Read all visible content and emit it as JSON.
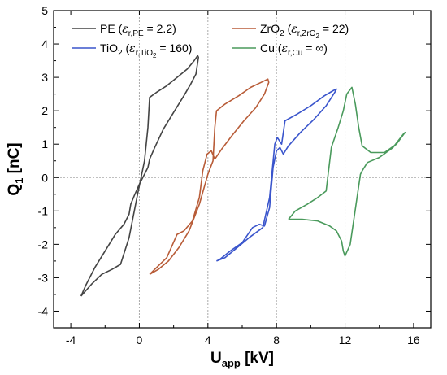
{
  "chart_data": {
    "type": "line",
    "xlabel": "U",
    "xlabel_sub": "app",
    "xlabel_unit": " [kV]",
    "ylabel": "Q",
    "ylabel_sub": "1",
    "ylabel_unit": " [nC]",
    "xlim": [
      -5,
      17
    ],
    "ylim": [
      -4.5,
      5
    ],
    "xticks": [
      -4,
      0,
      4,
      8,
      12,
      16
    ],
    "xtick_labels": [
      "-4",
      "0",
      "4",
      "8",
      "12",
      "16"
    ],
    "yticks": [
      -4,
      -3,
      -2,
      -1,
      0,
      1,
      2,
      3,
      4,
      5
    ],
    "ytick_labels": [
      "-4",
      "-3",
      "-2",
      "-1",
      "0",
      "1",
      "2",
      "3",
      "4",
      "5"
    ],
    "reference_lines": {
      "x": [
        0,
        4,
        8,
        12
      ],
      "y": [
        0
      ]
    },
    "legend_placement": "top",
    "series": [
      {
        "name": "PE",
        "eps_sub": "r,PE",
        "eps_value": "2.2",
        "color": "#444444",
        "x": [
          -3.4,
          -2.8,
          -2.2,
          -1.6,
          -1.1,
          -0.6,
          -0.1,
          0.3,
          0.5,
          0.6,
          1.0,
          1.6,
          2.2,
          2.8,
          3.2,
          3.4,
          3.45,
          3.3,
          3.0,
          2.6,
          2.0,
          1.4,
          0.9,
          0.6,
          0.5,
          0.3,
          0.0,
          -0.3,
          -0.5,
          -0.6,
          -0.9,
          -1.4,
          -2.0,
          -2.6,
          -3.1,
          -3.4
        ],
        "y": [
          -3.55,
          -3.2,
          -2.9,
          -2.75,
          -2.6,
          -1.8,
          -0.5,
          0.5,
          1.5,
          2.4,
          2.55,
          2.75,
          3.0,
          3.25,
          3.5,
          3.65,
          3.6,
          3.1,
          2.8,
          2.45,
          1.95,
          1.45,
          0.9,
          0.55,
          0.3,
          0.1,
          -0.2,
          -0.55,
          -0.8,
          -1.1,
          -1.4,
          -1.7,
          -2.2,
          -2.7,
          -3.2,
          -3.55
        ]
      },
      {
        "name": "ZrO",
        "name_sub": "2",
        "eps_sub": "r,ZrO",
        "eps_sub_sub": "2",
        "eps_value": "22",
        "color": "#b85c38",
        "x": [
          0.6,
          1.1,
          1.7,
          2.3,
          2.9,
          3.5,
          4.0,
          4.3,
          4.4,
          4.5,
          5.0,
          5.8,
          6.5,
          7.1,
          7.5,
          7.55,
          7.3,
          6.8,
          6.1,
          5.4,
          4.8,
          4.4,
          4.2,
          3.95,
          3.7,
          3.5,
          3.1,
          2.6,
          2.2,
          1.6,
          1.0,
          0.6
        ],
        "y": [
          -2.9,
          -2.75,
          -2.5,
          -2.1,
          -1.6,
          -0.8,
          0.1,
          0.5,
          1.5,
          2.0,
          2.2,
          2.45,
          2.7,
          2.85,
          2.95,
          2.85,
          2.5,
          2.1,
          1.7,
          1.25,
          0.85,
          0.55,
          0.8,
          0.7,
          0.2,
          -0.6,
          -1.3,
          -1.6,
          -1.7,
          -2.4,
          -2.7,
          -2.9
        ]
      },
      {
        "name": "TiO",
        "name_sub": "2",
        "eps_sub": "r,TiO",
        "eps_sub_sub": "2",
        "eps_value": "160",
        "color": "#3a55cc",
        "x": [
          4.5,
          5.0,
          5.7,
          6.4,
          7.2,
          7.6,
          7.9,
          8.05,
          8.3,
          8.5,
          9.2,
          10.0,
          10.8,
          11.3,
          11.5,
          11.4,
          10.9,
          10.2,
          9.4,
          8.7,
          8.4,
          8.2,
          8.0,
          7.8,
          7.6,
          7.3,
          7.0,
          6.6,
          6.0,
          5.3,
          4.7,
          4.5
        ],
        "y": [
          -2.5,
          -2.4,
          -2.1,
          -1.8,
          -1.5,
          -0.6,
          1.0,
          1.2,
          1.0,
          1.7,
          1.9,
          2.15,
          2.45,
          2.6,
          2.65,
          2.55,
          2.15,
          1.75,
          1.35,
          0.95,
          0.7,
          0.9,
          0.8,
          0.3,
          -0.9,
          -1.45,
          -1.4,
          -1.5,
          -1.95,
          -2.2,
          -2.45,
          -2.5
        ]
      },
      {
        "name": "Cu",
        "eps_sub": "r,Cu",
        "eps_value": "∞",
        "color": "#4a9a5c",
        "x": [
          8.7,
          9.5,
          10.4,
          11.1,
          11.5,
          11.8,
          11.9,
          12.0,
          12.3,
          12.7,
          12.9,
          13.0,
          13.3,
          14.0,
          14.8,
          15.4,
          15.5,
          15.0,
          14.3,
          13.5,
          13.0,
          12.8,
          12.6,
          12.4,
          12.1,
          11.9,
          11.6,
          11.2,
          10.9,
          10.4,
          9.8,
          9.1,
          8.7
        ],
        "y": [
          -1.25,
          -1.25,
          -1.3,
          -1.45,
          -1.6,
          -1.9,
          -2.2,
          -2.35,
          -2.0,
          -0.6,
          0.1,
          0.2,
          0.45,
          0.6,
          0.9,
          1.3,
          1.35,
          1.0,
          0.75,
          0.75,
          0.95,
          1.5,
          2.2,
          2.7,
          2.5,
          2.0,
          1.5,
          0.9,
          -0.4,
          -0.6,
          -0.8,
          -1.0,
          -1.25
        ]
      }
    ]
  }
}
